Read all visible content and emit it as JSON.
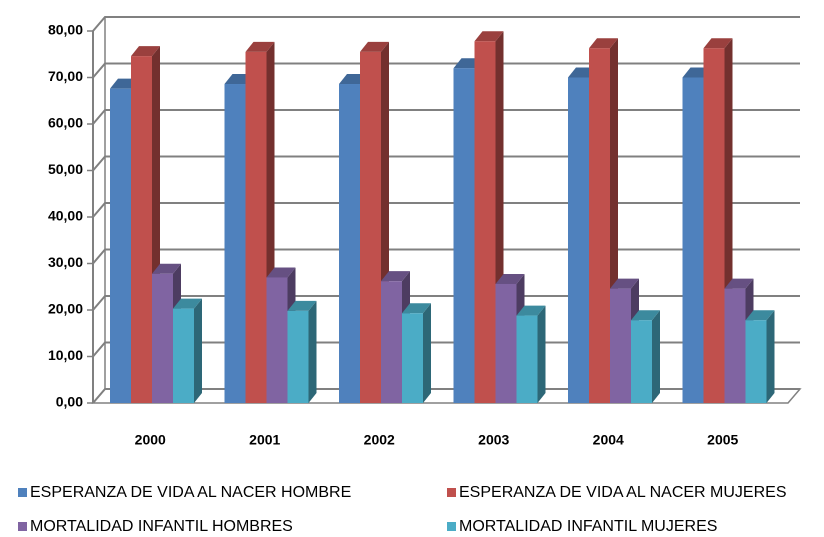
{
  "chart_data": {
    "type": "bar3d",
    "categories": [
      "2000",
      "2001",
      "2002",
      "2003",
      "2004",
      "2005"
    ],
    "series": [
      {
        "name": "ESPERANZA DE VIDA AL NACER HOMBRE",
        "color": "#4f81bd",
        "values": [
          67.6,
          68.6,
          68.6,
          72.0,
          70.0,
          70.0
        ]
      },
      {
        "name": "ESPERANZA DE VIDA AL NACER MUJERES",
        "color": "#c0504d",
        "values": [
          74.6,
          75.5,
          75.5,
          77.8,
          76.3,
          76.3
        ]
      },
      {
        "name": "MORTALIDAD INFANTIL HOMBRES",
        "color": "#8064a2",
        "values": [
          27.8,
          27.0,
          26.2,
          25.6,
          24.6,
          24.6
        ]
      },
      {
        "name": "MORTALIDAD INFANTIL MUJERES",
        "color": "#4bacc6",
        "values": [
          20.3,
          19.8,
          19.3,
          18.8,
          17.8,
          17.8
        ]
      }
    ],
    "ylim": [
      0,
      80
    ],
    "yticks": [
      {
        "value": 0,
        "label": "0,00"
      },
      {
        "value": 10,
        "label": "10,00"
      },
      {
        "value": 20,
        "label": "20,00"
      },
      {
        "value": 30,
        "label": "30,00"
      },
      {
        "value": 40,
        "label": "40,00"
      },
      {
        "value": 50,
        "label": "50,00"
      },
      {
        "value": 60,
        "label": "60,00"
      },
      {
        "value": 70,
        "label": "70,00"
      },
      {
        "value": 80,
        "label": "80,00"
      }
    ],
    "grid": true,
    "legend": "bottom"
  }
}
